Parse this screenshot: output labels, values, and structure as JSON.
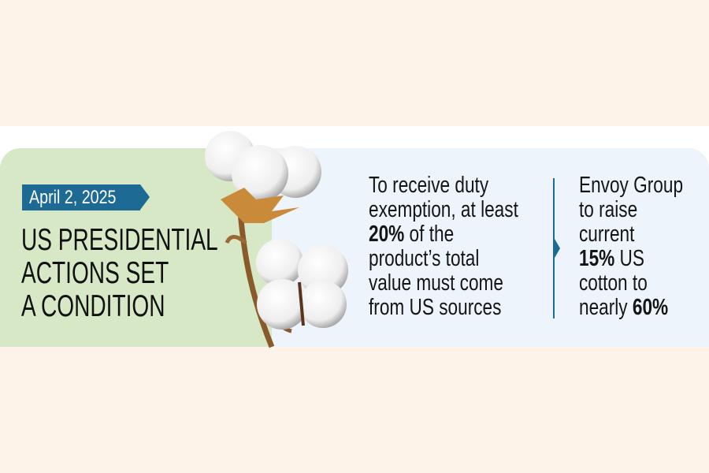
{
  "badge": {
    "date": "April 2, 2025",
    "color": "#1d6a94"
  },
  "headline": {
    "lines": [
      "US PRESIDENTIAL",
      "ACTIONS SET",
      "A CONDITION"
    ]
  },
  "condition": {
    "line1": "To receive duty",
    "line2": "exemption, at least",
    "line3_bold": "20%",
    "line3_rest": " of the",
    "line4": "product’s total",
    "line5": "value must come",
    "line6": "from US sources"
  },
  "envoy": {
    "line1": "Envoy Group",
    "line2": "to raise",
    "line3": "current",
    "line4_bold": "15%",
    "line4_rest": " US",
    "line5": "cotton to",
    "line6_rest": "nearly ",
    "line6_bold": "60%"
  },
  "colors": {
    "background": "#fdf3e8",
    "green_panel": "#d7e8c6",
    "blue_panel": "#eef4fb",
    "accent": "#1d6a94"
  }
}
